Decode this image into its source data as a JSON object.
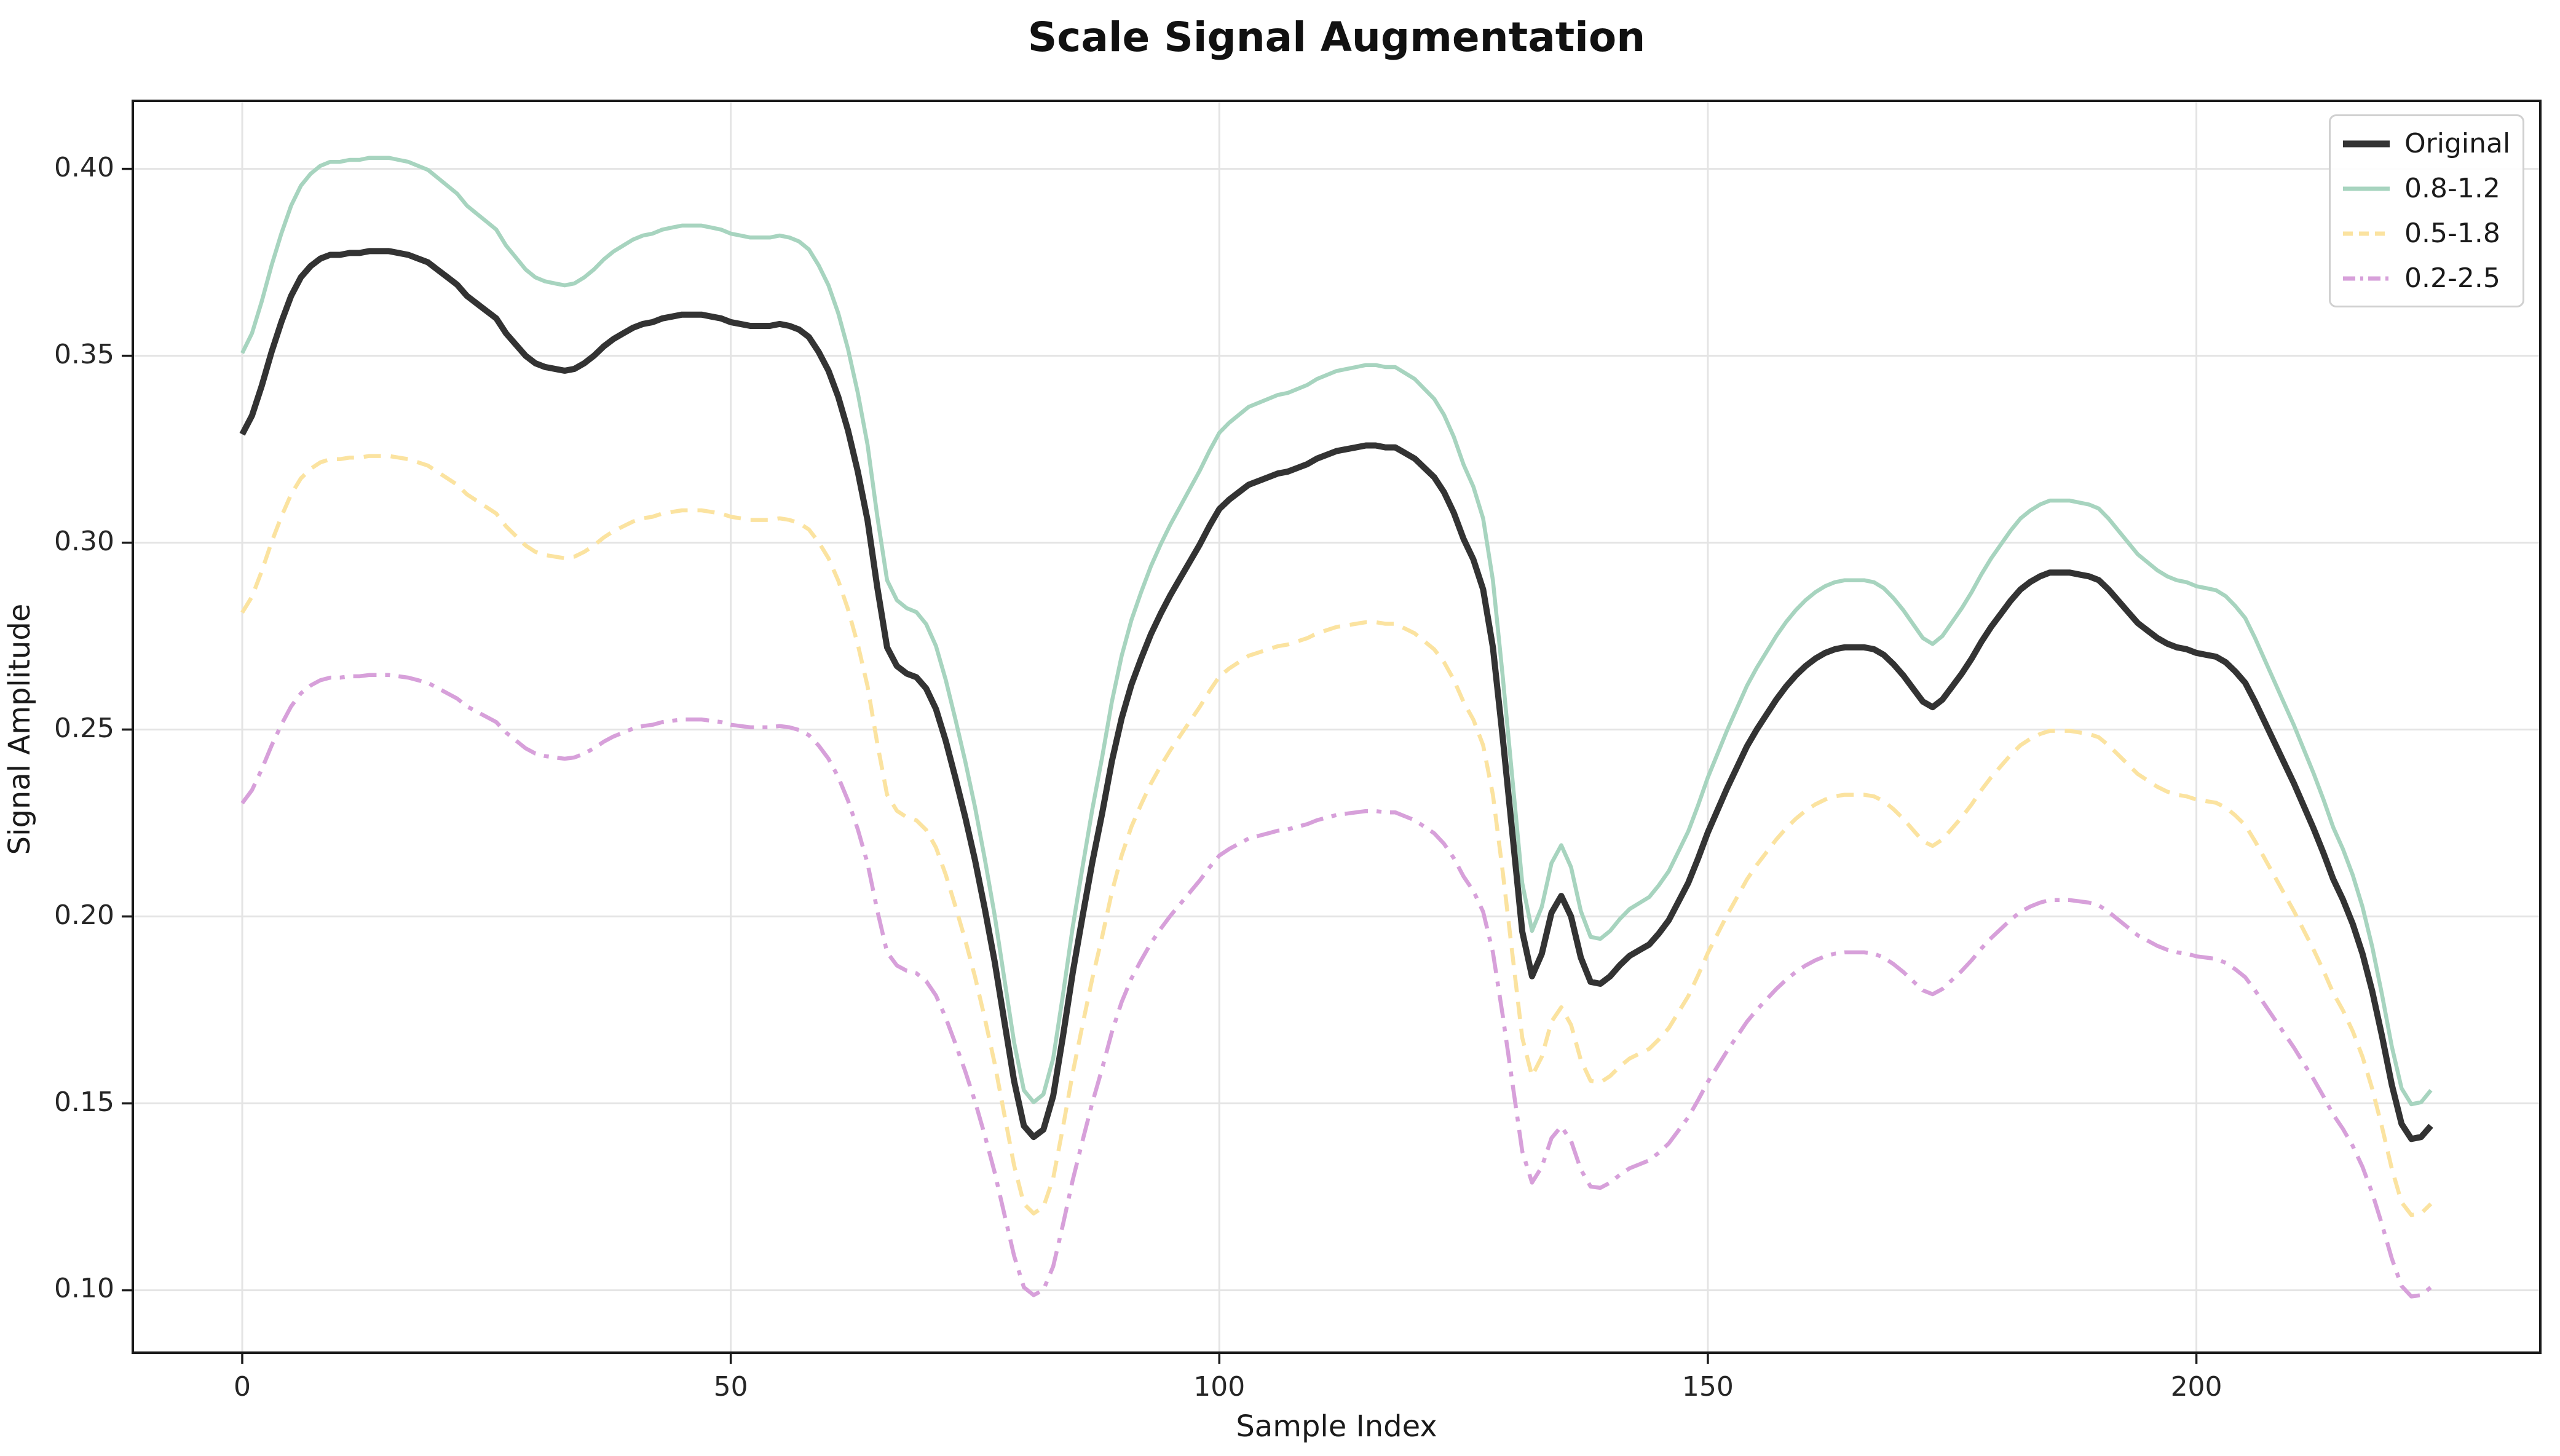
{
  "title": "Scale Signal Augmentation",
  "axes": {
    "xlabel": "Sample Index",
    "ylabel": "Signal Amplitude",
    "x_ticks": [
      {
        "value": 0,
        "label": "0"
      },
      {
        "value": 50,
        "label": "50"
      },
      {
        "value": 100,
        "label": "100"
      },
      {
        "value": 150,
        "label": "150"
      },
      {
        "value": 200,
        "label": "200"
      }
    ],
    "y_ticks": [
      {
        "value": 0.1,
        "label": "0.10"
      },
      {
        "value": 0.15,
        "label": "0.15"
      },
      {
        "value": 0.2,
        "label": "0.20"
      },
      {
        "value": 0.25,
        "label": "0.25"
      },
      {
        "value": 0.3,
        "label": "0.30"
      },
      {
        "value": 0.35,
        "label": "0.35"
      },
      {
        "value": 0.4,
        "label": "0.40"
      }
    ]
  },
  "style": {
    "grid_color": "#e4e4e4",
    "spine_color": "#1a1a1a",
    "background": "#ffffff",
    "legend_border": "#d0d0d0"
  },
  "chart_data": {
    "type": "line",
    "title": "Scale Signal Augmentation",
    "xlabel": "Sample Index",
    "ylabel": "Signal Amplitude",
    "xlim": [
      -11.2,
      235.2
    ],
    "ylim": [
      0.0833,
      0.4182
    ],
    "grid": true,
    "legend_position": "upper right",
    "x_start": 0,
    "x_step": 1,
    "n_points": 225,
    "series": [
      {
        "name": "Original",
        "color": "#333333",
        "style": "solid",
        "linewidth": 10,
        "scale": 1.0
      },
      {
        "name": "0.8-1.2",
        "color": "#a7d4bf",
        "style": "solid",
        "linewidth": 6.5,
        "scale": 1.066
      },
      {
        "name": "0.5-1.8",
        "color": "#fbe3a0",
        "style": "dashed",
        "linewidth": 6.5,
        "scale": 0.855
      },
      {
        "name": "0.2-2.5",
        "color": "#d7a0da",
        "style": "dashdot",
        "linewidth": 6.5,
        "scale": 0.7
      }
    ],
    "original_values": [
      0.329,
      0.334,
      0.342,
      0.351,
      0.359,
      0.366,
      0.371,
      0.374,
      0.376,
      0.377,
      0.377,
      0.3775,
      0.3775,
      0.378,
      0.378,
      0.378,
      0.3775,
      0.377,
      0.376,
      0.375,
      0.373,
      0.371,
      0.369,
      0.366,
      0.364,
      0.362,
      0.36,
      0.356,
      0.353,
      0.35,
      0.348,
      0.347,
      0.3465,
      0.346,
      0.3465,
      0.348,
      0.35,
      0.3525,
      0.3545,
      0.356,
      0.3575,
      0.3585,
      0.359,
      0.36,
      0.3605,
      0.361,
      0.361,
      0.361,
      0.3605,
      0.36,
      0.359,
      0.3585,
      0.358,
      0.358,
      0.358,
      0.3585,
      0.358,
      0.357,
      0.355,
      0.351,
      0.346,
      0.339,
      0.33,
      0.319,
      0.306,
      0.288,
      0.272,
      0.267,
      0.265,
      0.264,
      0.261,
      0.2555,
      0.247,
      0.237,
      0.2265,
      0.215,
      0.202,
      0.188,
      0.172,
      0.156,
      0.144,
      0.141,
      0.143,
      0.152,
      0.168,
      0.185,
      0.2,
      0.2145,
      0.2275,
      0.2415,
      0.253,
      0.262,
      0.269,
      0.2755,
      0.281,
      0.286,
      0.2905,
      0.295,
      0.2995,
      0.3045,
      0.309,
      0.3115,
      0.3135,
      0.3155,
      0.3165,
      0.3175,
      0.3185,
      0.319,
      0.32,
      0.321,
      0.3225,
      0.3235,
      0.3245,
      0.325,
      0.3255,
      0.326,
      0.326,
      0.3255,
      0.3255,
      0.324,
      0.3225,
      0.32,
      0.3175,
      0.3135,
      0.308,
      0.301,
      0.2955,
      0.2875,
      0.272,
      0.248,
      0.222,
      0.196,
      0.184,
      0.19,
      0.201,
      0.2055,
      0.2,
      0.189,
      0.1825,
      0.182,
      0.184,
      0.187,
      0.1895,
      0.191,
      0.1925,
      0.1955,
      0.199,
      0.204,
      0.209,
      0.2155,
      0.2225,
      0.2285,
      0.2345,
      0.24,
      0.2455,
      0.25,
      0.254,
      0.258,
      0.2615,
      0.2645,
      0.267,
      0.269,
      0.2705,
      0.2715,
      0.272,
      0.272,
      0.272,
      0.2715,
      0.27,
      0.2675,
      0.2645,
      0.261,
      0.2575,
      0.256,
      0.258,
      0.2615,
      0.265,
      0.269,
      0.2735,
      0.2775,
      0.281,
      0.2845,
      0.2875,
      0.2895,
      0.291,
      0.292,
      0.292,
      0.292,
      0.2915,
      0.291,
      0.29,
      0.2875,
      0.2845,
      0.2815,
      0.2785,
      0.2765,
      0.2745,
      0.273,
      0.272,
      0.2715,
      0.2705,
      0.27,
      0.2695,
      0.268,
      0.2655,
      0.2625,
      0.2575,
      0.252,
      0.2465,
      0.241,
      0.2355,
      0.2295,
      0.2235,
      0.217,
      0.21,
      0.2045,
      0.198,
      0.19,
      0.18,
      0.168,
      0.155,
      0.1445,
      0.1405,
      0.141,
      0.144
    ]
  }
}
